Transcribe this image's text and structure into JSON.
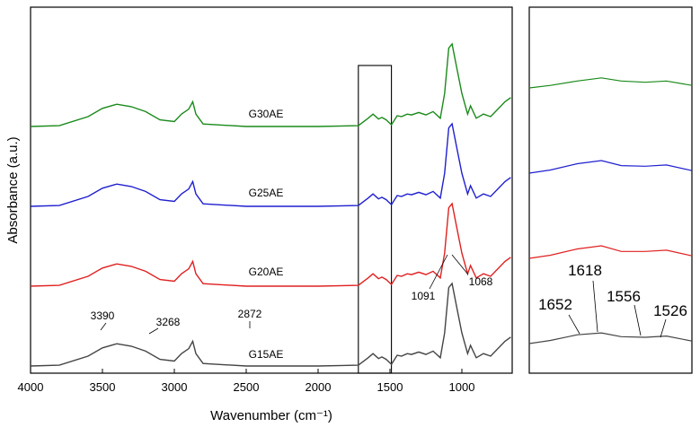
{
  "chart_data": [
    {
      "type": "line",
      "panel": "main",
      "xlabel": "Wavenumber (cm⁻¹)",
      "ylabel": "Absorbance (a.u.)",
      "xlim": [
        4000,
        650
      ],
      "x_reversed": true,
      "xticks": [
        4000,
        3500,
        3000,
        2500,
        2000,
        1500,
        1000
      ],
      "yticks": [],
      "inset_box_range": [
        1720,
        1490
      ],
      "series": [
        {
          "name": "G30AE",
          "color": "#1a8a1a",
          "offset": 3,
          "points": [
            [
              4000,
              0.0
            ],
            [
              3800,
              0.01
            ],
            [
              3600,
              0.12
            ],
            [
              3500,
              0.22
            ],
            [
              3400,
              0.27
            ],
            [
              3300,
              0.24
            ],
            [
              3200,
              0.18
            ],
            [
              3100,
              0.08
            ],
            [
              3000,
              0.06
            ],
            [
              2950,
              0.15
            ],
            [
              2900,
              0.21
            ],
            [
              2872,
              0.3
            ],
            [
              2850,
              0.15
            ],
            [
              2800,
              0.03
            ],
            [
              2500,
              0.0
            ],
            [
              2000,
              0.0
            ],
            [
              1720,
              0.01
            ],
            [
              1652,
              0.1
            ],
            [
              1618,
              0.15
            ],
            [
              1580,
              0.09
            ],
            [
              1556,
              0.11
            ],
            [
              1526,
              0.08
            ],
            [
              1490,
              0.02
            ],
            [
              1450,
              0.13
            ],
            [
              1420,
              0.12
            ],
            [
              1380,
              0.15
            ],
            [
              1350,
              0.14
            ],
            [
              1300,
              0.17
            ],
            [
              1250,
              0.14
            ],
            [
              1200,
              0.18
            ],
            [
              1150,
              0.1
            ],
            [
              1120,
              0.4
            ],
            [
              1091,
              0.95
            ],
            [
              1068,
              1.0
            ],
            [
              1040,
              0.75
            ],
            [
              1000,
              0.4
            ],
            [
              960,
              0.15
            ],
            [
              940,
              0.25
            ],
            [
              900,
              0.1
            ],
            [
              850,
              0.15
            ],
            [
              800,
              0.12
            ],
            [
              700,
              0.3
            ],
            [
              660,
              0.35
            ]
          ]
        },
        {
          "name": "G25AE",
          "color": "#1f1fd0",
          "offset": 2,
          "points": [
            [
              4000,
              0.0
            ],
            [
              3800,
              0.01
            ],
            [
              3600,
              0.12
            ],
            [
              3500,
              0.22
            ],
            [
              3400,
              0.27
            ],
            [
              3300,
              0.24
            ],
            [
              3200,
              0.18
            ],
            [
              3100,
              0.08
            ],
            [
              3000,
              0.06
            ],
            [
              2950,
              0.15
            ],
            [
              2900,
              0.21
            ],
            [
              2872,
              0.3
            ],
            [
              2850,
              0.15
            ],
            [
              2800,
              0.03
            ],
            [
              2500,
              0.0
            ],
            [
              2000,
              0.0
            ],
            [
              1720,
              0.01
            ],
            [
              1652,
              0.1
            ],
            [
              1618,
              0.15
            ],
            [
              1580,
              0.09
            ],
            [
              1556,
              0.11
            ],
            [
              1526,
              0.08
            ],
            [
              1490,
              0.02
            ],
            [
              1450,
              0.13
            ],
            [
              1420,
              0.12
            ],
            [
              1380,
              0.15
            ],
            [
              1350,
              0.14
            ],
            [
              1300,
              0.17
            ],
            [
              1250,
              0.14
            ],
            [
              1200,
              0.18
            ],
            [
              1150,
              0.1
            ],
            [
              1120,
              0.4
            ],
            [
              1091,
              0.95
            ],
            [
              1068,
              1.0
            ],
            [
              1040,
              0.75
            ],
            [
              1000,
              0.4
            ],
            [
              960,
              0.15
            ],
            [
              940,
              0.25
            ],
            [
              900,
              0.1
            ],
            [
              850,
              0.15
            ],
            [
              800,
              0.12
            ],
            [
              700,
              0.3
            ],
            [
              660,
              0.35
            ]
          ]
        },
        {
          "name": "G20AE",
          "color": "#e02020",
          "offset": 1,
          "points": [
            [
              4000,
              0.0
            ],
            [
              3800,
              0.01
            ],
            [
              3600,
              0.12
            ],
            [
              3500,
              0.22
            ],
            [
              3400,
              0.27
            ],
            [
              3300,
              0.24
            ],
            [
              3200,
              0.18
            ],
            [
              3100,
              0.08
            ],
            [
              3000,
              0.06
            ],
            [
              2950,
              0.15
            ],
            [
              2900,
              0.21
            ],
            [
              2872,
              0.3
            ],
            [
              2850,
              0.15
            ],
            [
              2800,
              0.03
            ],
            [
              2500,
              0.0
            ],
            [
              2000,
              0.0
            ],
            [
              1720,
              0.01
            ],
            [
              1652,
              0.1
            ],
            [
              1618,
              0.15
            ],
            [
              1580,
              0.09
            ],
            [
              1556,
              0.11
            ],
            [
              1526,
              0.08
            ],
            [
              1490,
              0.02
            ],
            [
              1450,
              0.13
            ],
            [
              1420,
              0.12
            ],
            [
              1380,
              0.15
            ],
            [
              1350,
              0.14
            ],
            [
              1300,
              0.17
            ],
            [
              1250,
              0.14
            ],
            [
              1200,
              0.18
            ],
            [
              1150,
              0.1
            ],
            [
              1120,
              0.4
            ],
            [
              1091,
              0.95
            ],
            [
              1068,
              1.0
            ],
            [
              1040,
              0.75
            ],
            [
              1000,
              0.4
            ],
            [
              960,
              0.15
            ],
            [
              940,
              0.25
            ],
            [
              900,
              0.1
            ],
            [
              850,
              0.15
            ],
            [
              800,
              0.12
            ],
            [
              700,
              0.3
            ],
            [
              660,
              0.35
            ]
          ]
        },
        {
          "name": "G15AE",
          "color": "#444444",
          "offset": 0,
          "points": [
            [
              4000,
              0.0
            ],
            [
              3800,
              0.01
            ],
            [
              3600,
              0.12
            ],
            [
              3500,
              0.22
            ],
            [
              3400,
              0.27
            ],
            [
              3300,
              0.24
            ],
            [
              3200,
              0.18
            ],
            [
              3100,
              0.08
            ],
            [
              3000,
              0.06
            ],
            [
              2950,
              0.15
            ],
            [
              2900,
              0.21
            ],
            [
              2872,
              0.3
            ],
            [
              2850,
              0.15
            ],
            [
              2800,
              0.03
            ],
            [
              2500,
              0.0
            ],
            [
              2000,
              0.0
            ],
            [
              1720,
              0.01
            ],
            [
              1652,
              0.1
            ],
            [
              1618,
              0.15
            ],
            [
              1580,
              0.09
            ],
            [
              1556,
              0.11
            ],
            [
              1526,
              0.08
            ],
            [
              1490,
              0.02
            ],
            [
              1450,
              0.13
            ],
            [
              1420,
              0.12
            ],
            [
              1380,
              0.15
            ],
            [
              1350,
              0.14
            ],
            [
              1300,
              0.17
            ],
            [
              1250,
              0.14
            ],
            [
              1200,
              0.18
            ],
            [
              1150,
              0.1
            ],
            [
              1120,
              0.4
            ],
            [
              1091,
              0.95
            ],
            [
              1068,
              1.0
            ],
            [
              1040,
              0.75
            ],
            [
              1000,
              0.4
            ],
            [
              960,
              0.15
            ],
            [
              940,
              0.25
            ],
            [
              900,
              0.1
            ],
            [
              850,
              0.15
            ],
            [
              800,
              0.12
            ],
            [
              700,
              0.3
            ],
            [
              660,
              0.35
            ]
          ]
        }
      ],
      "annotations": [
        "3390",
        "3268",
        "2872",
        "1091",
        "1068"
      ]
    },
    {
      "type": "line",
      "panel": "inset",
      "xlim": [
        1720,
        1490
      ],
      "x_reversed": true,
      "series": [
        {
          "name": "G30AE",
          "color": "#1a8a1a",
          "offset": 3,
          "points": [
            [
              1720,
              0.0
            ],
            [
              1690,
              0.2
            ],
            [
              1652,
              0.55
            ],
            [
              1618,
              0.8
            ],
            [
              1590,
              0.55
            ],
            [
              1556,
              0.45
            ],
            [
              1526,
              0.55
            ],
            [
              1490,
              0.2
            ]
          ]
        },
        {
          "name": "G25AE",
          "color": "#1f1fd0",
          "offset": 2,
          "points": [
            [
              1720,
              0.0
            ],
            [
              1690,
              0.25
            ],
            [
              1652,
              0.75
            ],
            [
              1618,
              1.0
            ],
            [
              1590,
              0.6
            ],
            [
              1556,
              0.55
            ],
            [
              1526,
              0.65
            ],
            [
              1490,
              0.2
            ]
          ]
        },
        {
          "name": "G20AE",
          "color": "#e02020",
          "offset": 1,
          "points": [
            [
              1720,
              0.0
            ],
            [
              1690,
              0.25
            ],
            [
              1652,
              0.75
            ],
            [
              1618,
              1.0
            ],
            [
              1590,
              0.55
            ],
            [
              1556,
              0.55
            ],
            [
              1526,
              0.65
            ],
            [
              1490,
              0.2
            ]
          ]
        },
        {
          "name": "G15AE",
          "color": "#444444",
          "offset": 0,
          "points": [
            [
              1720,
              0.0
            ],
            [
              1690,
              0.25
            ],
            [
              1652,
              0.7
            ],
            [
              1618,
              0.85
            ],
            [
              1590,
              0.55
            ],
            [
              1556,
              0.5
            ],
            [
              1526,
              0.6
            ],
            [
              1490,
              0.2
            ]
          ]
        }
      ],
      "annotations": [
        "1652",
        "1618",
        "1556",
        "1526"
      ]
    }
  ]
}
